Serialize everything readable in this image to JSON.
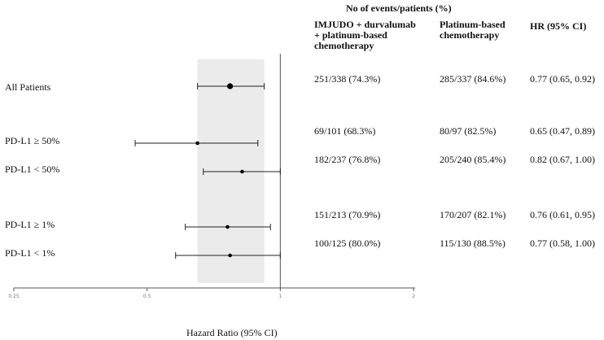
{
  "header": {
    "group_title": "No of events/patients (%)",
    "col1": [
      "IMJUDO + durvalumab",
      "+ platinum-based",
      "chemotherapy"
    ],
    "col2": [
      "Platinum-based",
      "chemotherapy"
    ],
    "col3": "HR  (95% CI)"
  },
  "chart_data": {
    "type": "forest",
    "xlabel": "Hazard Ratio (95% CI)",
    "xscale": "log2",
    "xlim": [
      0.25,
      2
    ],
    "ticks": [
      {
        "value": 0.25,
        "label": "0.25"
      },
      {
        "value": 0.5,
        "label": "0.5"
      },
      {
        "value": 1,
        "label": "1"
      },
      {
        "value": 2,
        "label": "2"
      }
    ],
    "reference_line": 1,
    "shaded_ci": [
      0.65,
      0.92
    ],
    "rows": [
      {
        "label": "All Patients",
        "hr": 0.77,
        "lo": 0.65,
        "hi": 0.92,
        "imjudo": "251/338 (74.3%)",
        "chemo": "285/337 (84.6%)",
        "ci_text": "0.77 (0.65, 0.92)",
        "overall": true
      },
      {
        "label": "PD-L1 ≥ 50%",
        "hr": 0.65,
        "lo": 0.47,
        "hi": 0.89,
        "imjudo": "69/101 (68.3%)",
        "chemo": "80/97 (82.5%)",
        "ci_text": "0.65 (0.47, 0.89)",
        "overall": false
      },
      {
        "label": "PD-L1 < 50%",
        "hr": 0.82,
        "lo": 0.67,
        "hi": 1.0,
        "imjudo": "182/237 (76.8%)",
        "chemo": "205/240 (85.4%)",
        "ci_text": "0.82 (0.67, 1.00)",
        "overall": false
      },
      {
        "label": "PD-L1 ≥ 1%",
        "hr": 0.76,
        "lo": 0.61,
        "hi": 0.95,
        "imjudo": "151/213 (70.9%)",
        "chemo": "170/207 (82.1%)",
        "ci_text": "0.76 (0.61, 0.95)",
        "overall": false
      },
      {
        "label": "PD-L1 < 1%",
        "hr": 0.77,
        "lo": 0.58,
        "hi": 1.0,
        "imjudo": "100/125 (80.0%)",
        "chemo": "115/130 (88.5%)",
        "ci_text": "0.77 (0.58, 1.00)",
        "overall": false
      }
    ]
  }
}
